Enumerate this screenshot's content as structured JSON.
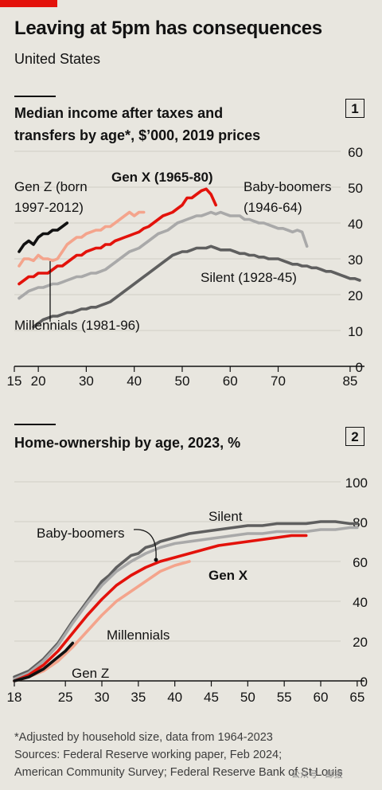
{
  "title": "Leaving at 5pm has consequences",
  "subtitle": "United States",
  "footnotes": [
    "*Adjusted by household size, data from 1964-2023",
    "Sources: Federal Reserve working paper, Feb 2024;",
    "American Community Survey; Federal Reserve Bank of St Louis"
  ],
  "watermark": "公众号 · 邮报",
  "chart_data": [
    {
      "type": "line",
      "panel_number": "1",
      "title": "Median income after taxes and transfers by age*, $'000, 2019 prices",
      "title_lines": [
        "Median income after taxes and",
        "transfers by age*, $’000, 2019 prices"
      ],
      "x_ticks": [
        15,
        20,
        30,
        40,
        50,
        60,
        70,
        85
      ],
      "y_ticks": [
        0,
        10,
        20,
        30,
        40,
        50,
        60
      ],
      "xlim": [
        15,
        88
      ],
      "ylim": [
        0,
        60
      ],
      "series": [
        {
          "name": "Gen Z (born 1997-2012)",
          "label_lines": [
            "Gen Z (born",
            "1997-2012)"
          ],
          "color": "#111111",
          "x": [
            16,
            17,
            18,
            19,
            20,
            21,
            22,
            23,
            24,
            25,
            26
          ],
          "y": [
            32,
            34,
            35,
            34,
            36,
            37,
            37,
            38,
            38,
            39,
            40
          ]
        },
        {
          "name": "Millennials (1981-96)",
          "label_lines": [
            "Millennials (1981-96)"
          ],
          "color": "#f4a48c",
          "x": [
            16,
            17,
            18,
            19,
            20,
            21,
            22,
            23,
            24,
            25,
            26,
            27,
            28,
            29,
            30,
            31,
            32,
            33,
            34,
            35,
            36,
            37,
            38,
            39,
            40,
            41,
            42
          ],
          "y": [
            28,
            30,
            30,
            29.5,
            31,
            30,
            30,
            29.5,
            30,
            32,
            34,
            35,
            36,
            36,
            37,
            37.5,
            38,
            38,
            39,
            39,
            40,
            41,
            42,
            43,
            42,
            43,
            43
          ]
        },
        {
          "name": "Gen X (1965-80)",
          "label_lines": [
            "Gen X (1965-80)"
          ],
          "color": "#e3120b",
          "x": [
            16,
            17,
            18,
            19,
            20,
            21,
            22,
            23,
            24,
            25,
            26,
            27,
            28,
            29,
            30,
            31,
            32,
            33,
            34,
            35,
            36,
            37,
            38,
            39,
            40,
            41,
            42,
            43,
            44,
            45,
            46,
            47,
            48,
            49,
            50,
            51,
            52,
            53,
            54,
            55,
            56,
            57
          ],
          "y": [
            23,
            24,
            25,
            25,
            26,
            26,
            26,
            27,
            28,
            28,
            29,
            30,
            31,
            31,
            32,
            32.5,
            33,
            33,
            34,
            34,
            35,
            35.5,
            36,
            36.5,
            37,
            37.5,
            38.5,
            39,
            40,
            41,
            42,
            42.5,
            43,
            44,
            45,
            47,
            47,
            48,
            49,
            49.5,
            48,
            45
          ]
        },
        {
          "name": "Baby-boomers (1946-64)",
          "label_lines": [
            "Baby-boomers",
            "(1946-64)"
          ],
          "color": "#a9a9a9",
          "x": [
            16,
            17,
            18,
            19,
            20,
            21,
            22,
            23,
            24,
            25,
            26,
            27,
            28,
            29,
            30,
            31,
            32,
            33,
            34,
            35,
            36,
            37,
            38,
            39,
            40,
            41,
            42,
            43,
            44,
            45,
            46,
            47,
            48,
            49,
            50,
            51,
            52,
            53,
            54,
            55,
            56,
            57,
            58,
            59,
            60,
            61,
            62,
            63,
            64,
            65,
            66,
            67,
            68,
            69,
            70,
            71,
            72,
            73,
            74,
            75,
            76
          ],
          "y": [
            19,
            20,
            21,
            21.5,
            22,
            22,
            22.5,
            23,
            23,
            23.5,
            24,
            24.5,
            25,
            25,
            25.5,
            26,
            26,
            26.5,
            27,
            28,
            29,
            30,
            31,
            32,
            32.5,
            33,
            34,
            35,
            36,
            37,
            37.5,
            38,
            39,
            40,
            40.5,
            41,
            41.5,
            42,
            42,
            42.5,
            43,
            42.5,
            43,
            42.5,
            42,
            42,
            42,
            41,
            41,
            40.5,
            40,
            40,
            39.5,
            39,
            38.5,
            38.5,
            38,
            37.5,
            38,
            37.5,
            33.5
          ]
        },
        {
          "name": "Silent (1928-45)",
          "label_lines": [
            "Silent (1928-45)"
          ],
          "color": "#5f5f5f",
          "x": [
            19,
            20,
            21,
            22,
            23,
            24,
            25,
            26,
            27,
            28,
            29,
            30,
            31,
            32,
            33,
            34,
            35,
            36,
            37,
            38,
            39,
            40,
            41,
            42,
            43,
            44,
            45,
            46,
            47,
            48,
            49,
            50,
            51,
            52,
            53,
            54,
            55,
            56,
            57,
            58,
            59,
            60,
            61,
            62,
            63,
            64,
            65,
            66,
            67,
            68,
            69,
            70,
            71,
            72,
            73,
            74,
            75,
            76,
            77,
            78,
            79,
            80,
            81,
            82,
            83,
            84,
            85,
            86,
            87
          ],
          "y": [
            11,
            12,
            13,
            13.5,
            14,
            14,
            14.5,
            15,
            15,
            15.5,
            16,
            16,
            16.5,
            16.5,
            17,
            17.5,
            18,
            19,
            20,
            21,
            22,
            23,
            24,
            25,
            26,
            27,
            28,
            29,
            30,
            31,
            31.5,
            32,
            32,
            32.5,
            33,
            33,
            33,
            33.5,
            33,
            32.5,
            32.5,
            32.5,
            32,
            31.5,
            31.5,
            31,
            31,
            30.5,
            30.5,
            30,
            30,
            30,
            29.5,
            29,
            28.5,
            28.5,
            28,
            28,
            27.5,
            27.5,
            27,
            26.5,
            26.5,
            26,
            25.5,
            25,
            24.5,
            24.5,
            24
          ]
        }
      ]
    },
    {
      "type": "line",
      "panel_number": "2",
      "title": "Home-ownership by age, 2023, %",
      "title_lines": [
        "Home-ownership by age, 2023, %"
      ],
      "x_ticks": [
        18,
        25,
        30,
        35,
        40,
        45,
        50,
        55,
        60,
        65
      ],
      "y_ticks": [
        0,
        20,
        40,
        60,
        80,
        100
      ],
      "xlim": [
        18,
        66
      ],
      "ylim": [
        0,
        100
      ],
      "series": [
        {
          "name": "Silent",
          "label_lines": [
            "Silent"
          ],
          "color": "#5f5f5f",
          "x": [
            18,
            20,
            22,
            24,
            26,
            28,
            30,
            31,
            32,
            33,
            34,
            35,
            36,
            37,
            38,
            39,
            40,
            42,
            44,
            46,
            48,
            50,
            52,
            54,
            56,
            58,
            60,
            62,
            64,
            65
          ],
          "y": [
            2,
            5,
            11,
            19,
            30,
            40,
            50,
            53,
            57,
            60,
            63,
            64,
            67,
            68,
            70,
            71,
            72,
            74,
            75,
            76,
            77,
            78,
            78,
            79,
            79,
            79,
            80,
            80,
            79,
            79
          ]
        },
        {
          "name": "Baby-boomers",
          "label_lines": [
            "Baby-boomers"
          ],
          "color": "#a9a9a9",
          "x": [
            18,
            20,
            22,
            24,
            26,
            28,
            30,
            32,
            34,
            36,
            38,
            40,
            42,
            44,
            46,
            48,
            50,
            52,
            54,
            56,
            58,
            60,
            62,
            64,
            65
          ],
          "y": [
            1,
            4,
            10,
            18,
            29,
            39,
            48,
            55,
            60,
            64,
            67,
            69,
            70,
            71,
            72,
            73,
            74,
            74,
            75,
            75,
            75,
            76,
            76,
            77,
            77
          ]
        },
        {
          "name": "Gen X",
          "label_lines": [
            "Gen X"
          ],
          "color": "#e3120b",
          "x": [
            18,
            20,
            22,
            24,
            26,
            28,
            30,
            32,
            34,
            36,
            38,
            40,
            42,
            44,
            46,
            48,
            50,
            52,
            54,
            56,
            58
          ],
          "y": [
            0,
            3,
            8,
            15,
            24,
            33,
            41,
            48,
            53,
            57,
            60,
            62,
            64,
            66,
            68,
            69,
            70,
            71,
            72,
            73,
            73
          ]
        },
        {
          "name": "Millennials",
          "label_lines": [
            "Millennials"
          ],
          "color": "#f4a48c",
          "x": [
            18,
            20,
            22,
            24,
            26,
            28,
            30,
            32,
            34,
            36,
            38,
            40,
            42
          ],
          "y": [
            0,
            2,
            5,
            10,
            17,
            25,
            33,
            40,
            45,
            50,
            55,
            58,
            60
          ]
        },
        {
          "name": "Gen Z",
          "label_lines": [
            "Gen Z"
          ],
          "color": "#111111",
          "x": [
            18,
            19,
            20,
            21,
            22,
            23,
            24,
            25,
            26
          ],
          "y": [
            0,
            1,
            2,
            4,
            6,
            9,
            12,
            15,
            19
          ]
        }
      ]
    }
  ]
}
